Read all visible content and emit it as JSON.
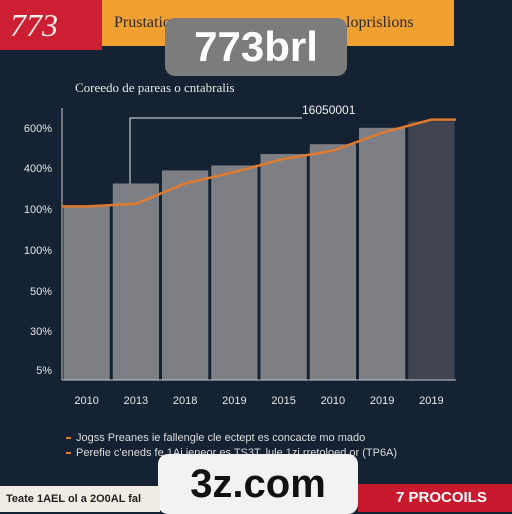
{
  "header": {
    "badge": "773",
    "banner_left": "Prustatio",
    "banner_right": "loprislions"
  },
  "watermarks": {
    "top": "773brl",
    "bottom": "3z.com"
  },
  "chart_data": {
    "type": "bar",
    "title": "",
    "subtitle": "Coreedo de pareas o cntabralis",
    "annotation": "16050001",
    "categories": [
      "2010",
      "2013",
      "2018",
      "2019",
      "2015",
      "2010",
      "2019",
      "2019"
    ],
    "y_tick_labels": [
      "600%",
      "400%",
      "100%",
      "100%",
      "50%",
      "30%",
      "5%"
    ],
    "values": [
      5.3,
      6.0,
      6.4,
      6.55,
      6.9,
      7.2,
      7.7,
      7.9
    ],
    "line_values": [
      5.3,
      5.38,
      6.0,
      6.35,
      6.75,
      7.0,
      7.55,
      7.95
    ],
    "ylim": [
      0,
      8
    ],
    "grid": false,
    "colors": {
      "bars": "#7d7f84",
      "line": "#e07a2f",
      "axis": "#c8c8c8"
    }
  },
  "footer": {
    "note1": "Jogss Preanes ie fallengle cle ectept es concacte mo mado",
    "note2": "Perefie c'eneds fe 1Ai ieneor es TS3T, lule 1zi rretoloed or (TP6A)",
    "bottom_left": "Teate 1AEL ol a 2O0AL fal",
    "bottom_right": "7 PROCOILS"
  }
}
